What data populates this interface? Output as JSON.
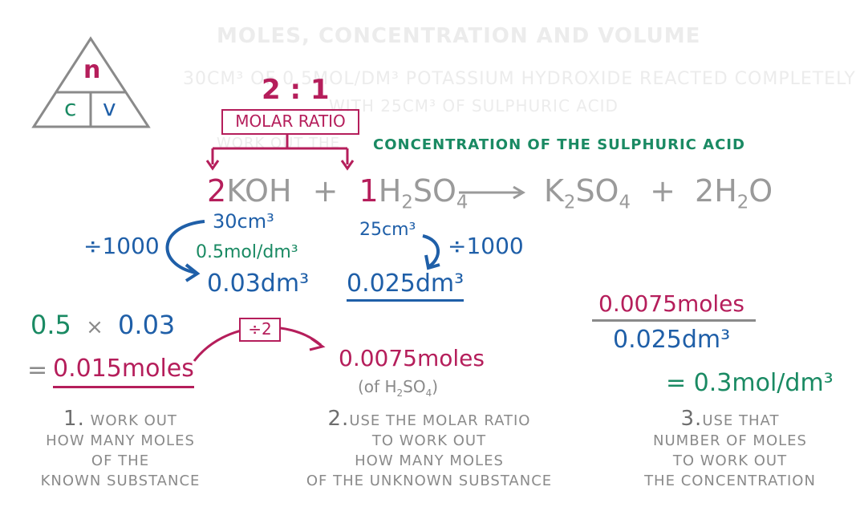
{
  "header": {
    "title": "Moles, Concentration and Volume",
    "question_line1": "30cm³ of 0.5mol/dm³ potassium hydroxide reacted completely",
    "question_line2": "with 25cm³ of sulphuric acid",
    "question_line3_start": "Work out the",
    "question_line3_highlight": "concentration of the sulphuric acid"
  },
  "triangle": {
    "top": "n",
    "left": "c",
    "right": "v"
  },
  "ratio": {
    "value": "2 : 1",
    "label": "MOLAR RATIO"
  },
  "equation": {
    "koh_coeff": "2",
    "koh": "KOH",
    "plus1": "+",
    "acid_coeff": "1",
    "acid_h": "H",
    "acid_h_sub": "2",
    "acid_so": "SO",
    "acid_so_sub": "4",
    "product1_k": "K",
    "product1_k_sub": "2",
    "product1_so": "SO",
    "product1_so_sub": "4",
    "plus2": "+",
    "product2": "2H",
    "product2_sub": "2",
    "product2_o": "O"
  },
  "left_conversion": {
    "volume": "30cm³",
    "divider": "÷1000",
    "concentration": "0.5mol/dm³",
    "result": "0.03dm³"
  },
  "right_conversion": {
    "volume": "25cm³",
    "divider": "÷1000",
    "result": "0.025dm³"
  },
  "step1": {
    "calc_a": "0.5",
    "times": "×",
    "calc_b": "0.03",
    "equals": "=",
    "result": "0.015moles"
  },
  "step2": {
    "divide": "÷2",
    "result": "0.0075moles",
    "note_open": "(of H",
    "note_sub1": "2",
    "note_so": "SO",
    "note_sub2": "4",
    "note_close": ")"
  },
  "step3": {
    "numerator": "0.0075moles",
    "denominator": "0.025dm³",
    "result": "= 0.3mol/dm³"
  },
  "labels": {
    "step1_num": "1.",
    "step1_l1": "work out",
    "step1_l2": "how many moles",
    "step1_l3": "of the",
    "step1_l4": "known substance",
    "step2_num": "2.",
    "step2_l1": "use the molar ratio",
    "step2_l2": "to work out",
    "step2_l3": "how many moles",
    "step2_l4": "of the unknown substance",
    "step3_num": "3.",
    "step3_l1": "use that",
    "step3_l2": "number of moles",
    "step3_l3": "to work out",
    "step3_l4": "the concentration"
  },
  "colors": {
    "blue": "#1f5fa8",
    "green": "#1a8a63",
    "pink": "#b51e5b",
    "grey": "#8a8a8a"
  }
}
